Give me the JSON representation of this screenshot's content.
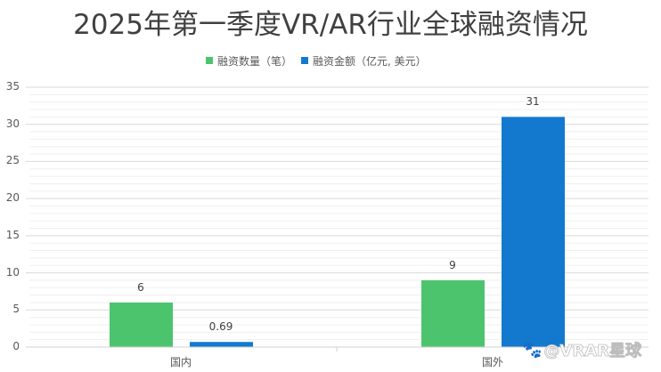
{
  "chart_data": {
    "type": "bar",
    "title": "2025年第一季度VR/AR行业全球融资情况",
    "categories": [
      "国内",
      "国外"
    ],
    "series": [
      {
        "name": "融资数量（笔）",
        "color": "#4cc46e",
        "values": [
          6,
          9
        ]
      },
      {
        "name": "融资金额（亿元, 美元）",
        "color": "#1279cf",
        "values": [
          0.69,
          31
        ]
      }
    ],
    "data_labels": [
      [
        "6",
        "9"
      ],
      [
        "0.69",
        "31"
      ]
    ],
    "xlabel": "",
    "ylabel": "",
    "ylim": [
      0,
      35
    ],
    "yticks": [
      "0",
      "5",
      "10",
      "15",
      "20",
      "25",
      "30",
      "35"
    ],
    "grid": {
      "major": true,
      "minor": true,
      "major_step": 5,
      "minor_step": 1
    },
    "legend_position": "top"
  },
  "title": "2025年第一季度VR/AR行业全球融资情况",
  "legend": [
    {
      "label": "融资数量（笔）",
      "color": "#4cc46e"
    },
    {
      "label": "融资金额（亿元, 美元）",
      "color": "#1279cf"
    }
  ],
  "watermark": {
    "icon": "paw-icon",
    "text": "@VRAR星球"
  }
}
